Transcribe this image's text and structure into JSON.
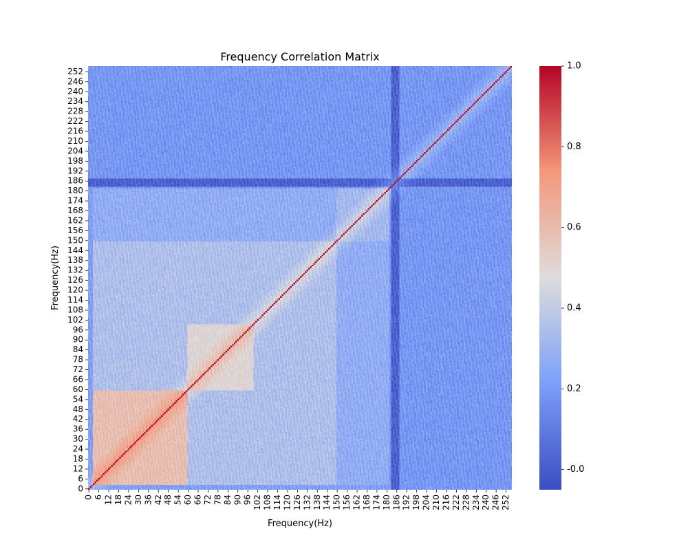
{
  "chart_data": {
    "type": "heatmap",
    "title": "Frequency Correlation Matrix",
    "xlabel": "Frequency(Hz)",
    "ylabel": "Frequency(Hz)",
    "n": 256,
    "x_ticks": [
      0,
      6,
      12,
      18,
      24,
      30,
      36,
      42,
      48,
      54,
      60,
      66,
      72,
      78,
      84,
      90,
      96,
      102,
      108,
      114,
      120,
      126,
      132,
      138,
      144,
      150,
      156,
      162,
      168,
      174,
      180,
      186,
      192,
      198,
      204,
      210,
      216,
      222,
      228,
      234,
      240,
      246,
      252
    ],
    "y_ticks": [
      0,
      6,
      12,
      18,
      24,
      30,
      36,
      42,
      48,
      54,
      60,
      66,
      72,
      78,
      84,
      90,
      96,
      102,
      108,
      114,
      120,
      126,
      132,
      138,
      144,
      150,
      156,
      162,
      168,
      174,
      180,
      186,
      192,
      198,
      204,
      210,
      216,
      222,
      228,
      234,
      240,
      246,
      252
    ],
    "y_axis_order": "ascending-upward",
    "colormap": "coolwarm",
    "value_range": [
      -0.05,
      1.0
    ],
    "colorbar_ticks": [
      "-0.0",
      "0.2",
      "0.4",
      "0.6",
      "0.8",
      "1.0"
    ],
    "colorbar_tick_values": [
      0.0,
      0.2,
      0.4,
      0.6,
      0.8,
      1.0
    ],
    "diagonal_value": 1.0,
    "background_correlation": 0.22,
    "regions": [
      {
        "rows": [
          0,
          60
        ],
        "cols": [
          0,
          60
        ],
        "value": 0.62
      },
      {
        "rows": [
          60,
          100
        ],
        "cols": [
          60,
          100
        ],
        "value": 0.52
      },
      {
        "rows": [
          0,
          150
        ],
        "cols": [
          0,
          150
        ],
        "value": 0.38
      },
      {
        "rows": [
          150,
          182
        ],
        "cols": [
          150,
          182
        ],
        "value": 0.35
      },
      {
        "rows": [
          0,
          182
        ],
        "cols": [
          150,
          182
        ],
        "value": 0.3
      },
      {
        "rows": [
          150,
          182
        ],
        "cols": [
          0,
          150
        ],
        "value": 0.3
      }
    ],
    "low_bands": [
      {
        "index": [
          183,
          188
        ],
        "value": 0.05
      },
      {
        "index": [
          0,
          3
        ],
        "value": 0.25
      }
    ]
  }
}
